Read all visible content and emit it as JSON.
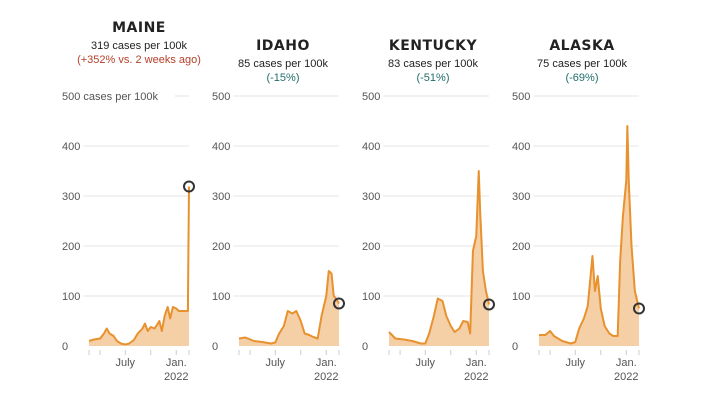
{
  "chart_data": [
    {
      "type": "area",
      "title": "MAINE",
      "subtitle": "319 cases per 100k",
      "change": "(+352% vs. 2 weeks ago)",
      "change_color": "#b5402a",
      "ylabel_top": "500 cases per 100k",
      "ylim": [
        0,
        500
      ],
      "yticks": [
        0,
        100,
        200,
        300,
        400,
        500
      ],
      "xlim": [
        "2021-02-20",
        "2022-02-16"
      ],
      "xticks": [
        {
          "date": "2021-07-01",
          "label": "July"
        },
        {
          "date": "2022-01-01",
          "label": "Jan.",
          "label2": "2022"
        }
      ],
      "x": [
        "2021-02-20",
        "2021-03-10",
        "2021-04-01",
        "2021-04-15",
        "2021-04-25",
        "2021-05-05",
        "2021-05-20",
        "2021-06-01",
        "2021-06-15",
        "2021-07-01",
        "2021-07-15",
        "2021-08-01",
        "2021-08-15",
        "2021-09-01",
        "2021-09-10",
        "2021-09-20",
        "2021-10-01",
        "2021-10-15",
        "2021-11-01",
        "2021-11-10",
        "2021-11-20",
        "2021-12-01",
        "2021-12-10",
        "2021-12-20",
        "2022-01-01",
        "2022-01-10",
        "2022-01-25",
        "2022-02-05",
        "2022-02-12",
        "2022-02-14",
        "2022-02-16"
      ],
      "values": [
        10,
        13,
        15,
        25,
        35,
        25,
        20,
        10,
        5,
        3,
        5,
        12,
        25,
        35,
        45,
        30,
        38,
        35,
        50,
        30,
        60,
        78,
        55,
        78,
        75,
        70,
        70,
        70,
        70,
        200,
        319
      ]
    },
    {
      "type": "area",
      "title": "IDAHO",
      "subtitle": "85 cases per 100k",
      "change": "(-15%)",
      "change_color": "#1f6e6a",
      "ylabel_top": "500",
      "ylim": [
        0,
        500
      ],
      "yticks": [
        0,
        100,
        200,
        300,
        400,
        500
      ],
      "xlim": [
        "2021-02-20",
        "2022-02-16"
      ],
      "xticks": [
        {
          "date": "2021-07-01",
          "label": "July"
        },
        {
          "date": "2022-01-01",
          "label": "Jan.",
          "label2": "2022"
        }
      ],
      "x": [
        "2021-02-20",
        "2021-03-15",
        "2021-04-15",
        "2021-05-15",
        "2021-06-15",
        "2021-07-01",
        "2021-07-15",
        "2021-08-01",
        "2021-08-15",
        "2021-09-01",
        "2021-09-15",
        "2021-10-01",
        "2021-10-15",
        "2021-11-01",
        "2021-11-15",
        "2021-12-01",
        "2021-12-15",
        "2022-01-01",
        "2022-01-10",
        "2022-01-20",
        "2022-01-28",
        "2022-02-05",
        "2022-02-16"
      ],
      "values": [
        15,
        17,
        10,
        8,
        5,
        7,
        25,
        40,
        70,
        65,
        70,
        50,
        25,
        22,
        18,
        15,
        60,
        100,
        150,
        145,
        100,
        95,
        85
      ]
    },
    {
      "type": "area",
      "title": "KENTUCKY",
      "subtitle": "83 cases per 100k",
      "change": "(-51%)",
      "change_color": "#1f6e6a",
      "ylabel_top": "500",
      "ylim": [
        0,
        500
      ],
      "yticks": [
        0,
        100,
        200,
        300,
        400,
        500
      ],
      "xlim": [
        "2021-02-20",
        "2022-02-16"
      ],
      "xticks": [
        {
          "date": "2021-07-01",
          "label": "July"
        },
        {
          "date": "2022-01-01",
          "label": "Jan.",
          "label2": "2022"
        }
      ],
      "x": [
        "2021-02-20",
        "2021-03-15",
        "2021-04-15",
        "2021-05-15",
        "2021-06-15",
        "2021-07-01",
        "2021-07-15",
        "2021-08-01",
        "2021-08-15",
        "2021-09-01",
        "2021-09-15",
        "2021-10-01",
        "2021-10-15",
        "2021-11-01",
        "2021-11-15",
        "2021-12-01",
        "2021-12-10",
        "2021-12-20",
        "2022-01-01",
        "2022-01-10",
        "2022-01-15",
        "2022-01-25",
        "2022-02-05",
        "2022-02-16"
      ],
      "values": [
        28,
        15,
        13,
        10,
        5,
        5,
        25,
        60,
        95,
        90,
        60,
        40,
        28,
        35,
        50,
        48,
        25,
        190,
        220,
        350,
        270,
        150,
        110,
        83
      ]
    },
    {
      "type": "area",
      "title": "ALASKA",
      "subtitle": "75 cases per 100k",
      "change": "(-69%)",
      "change_color": "#1f6e6a",
      "ylabel_top": "500",
      "ylim": [
        0,
        500
      ],
      "yticks": [
        0,
        100,
        200,
        300,
        400,
        500
      ],
      "xlim": [
        "2021-02-20",
        "2022-02-16"
      ],
      "xticks": [
        {
          "date": "2021-07-01",
          "label": "July"
        },
        {
          "date": "2022-01-01",
          "label": "Jan.",
          "label2": "2022"
        }
      ],
      "x": [
        "2021-02-20",
        "2021-03-15",
        "2021-04-01",
        "2021-04-15",
        "2021-05-15",
        "2021-06-15",
        "2021-07-01",
        "2021-07-15",
        "2021-08-01",
        "2021-08-15",
        "2021-09-01",
        "2021-09-10",
        "2021-09-20",
        "2021-10-01",
        "2021-10-15",
        "2021-11-01",
        "2021-11-15",
        "2021-12-01",
        "2021-12-10",
        "2021-12-20",
        "2022-01-01",
        "2022-01-05",
        "2022-01-10",
        "2022-01-20",
        "2022-02-01",
        "2022-02-16"
      ],
      "values": [
        22,
        22,
        30,
        20,
        10,
        5,
        8,
        35,
        55,
        80,
        180,
        110,
        140,
        75,
        40,
        25,
        20,
        20,
        170,
        260,
        330,
        440,
        330,
        200,
        110,
        75
      ]
    }
  ],
  "colors": {
    "line": "#e8912f",
    "fill": "#f5cfa6",
    "grid": "#e6e6e6",
    "marker": "#333333"
  }
}
